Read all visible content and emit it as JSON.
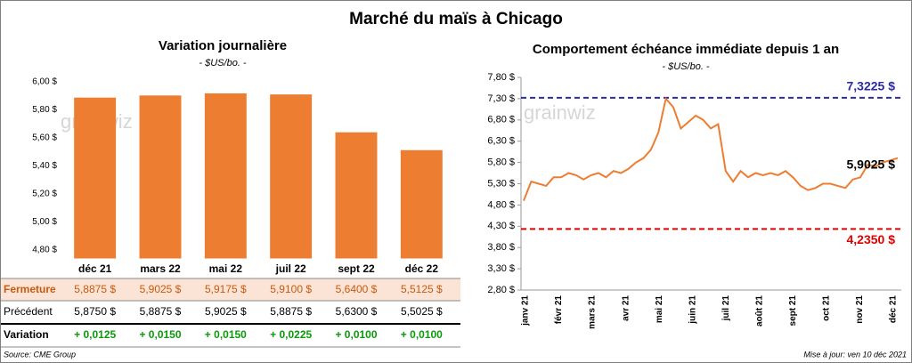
{
  "title": "Marché du maïs à Chicago",
  "watermark": "grainwiz",
  "source": "Source: CME Group",
  "updated": "Mise à jour: ven 10 déc 2021",
  "chart_data": [
    {
      "type": "bar",
      "title": "Variation journalière",
      "subtitle": "- $US/bo. -",
      "categories": [
        "déc 21",
        "mars 22",
        "mai 22",
        "juil 22",
        "sept 22",
        "déc 22"
      ],
      "values": [
        5.8875,
        5.9025,
        5.9175,
        5.91,
        5.64,
        5.5125
      ],
      "color": "#ed7d31",
      "ylim": [
        4.74,
        6.06
      ],
      "yticks": [
        {
          "value": 4.8,
          "label": "4,80 $"
        },
        {
          "value": 5.0,
          "label": "5,00 $"
        },
        {
          "value": 5.2,
          "label": "5,20 $"
        },
        {
          "value": 5.4,
          "label": "5,40 $"
        },
        {
          "value": 5.6,
          "label": "5,60 $"
        },
        {
          "value": 5.8,
          "label": "5,80 $"
        },
        {
          "value": 6.0,
          "label": "6,00 $"
        }
      ]
    },
    {
      "type": "line",
      "title": "Comportement  échéance immédiate depuis 1 an",
      "subtitle": "- $US/bo. -",
      "x_labels": [
        "janv 21",
        "févr 21",
        "mars 21",
        "avr 21",
        "mai 21",
        "juin 21",
        "juil 21",
        "août 21",
        "sept 21",
        "oct 21",
        "nov 21",
        "déc 21"
      ],
      "values": [
        4.9,
        5.35,
        5.3,
        5.25,
        5.45,
        5.45,
        5.55,
        5.5,
        5.4,
        5.5,
        5.55,
        5.45,
        5.6,
        5.55,
        5.65,
        5.8,
        5.9,
        6.1,
        6.5,
        7.3,
        7.1,
        6.6,
        6.75,
        6.9,
        6.8,
        6.6,
        6.7,
        5.6,
        5.35,
        5.6,
        5.45,
        5.55,
        5.5,
        5.55,
        5.5,
        5.6,
        5.45,
        5.25,
        5.15,
        5.2,
        5.3,
        5.3,
        5.25,
        5.2,
        5.4,
        5.45,
        5.75,
        5.7,
        5.8,
        5.85,
        5.9025
      ],
      "color": "#ed7d31",
      "end_label": "5,9025 $",
      "reference_lines": [
        {
          "value": 7.3225,
          "label": "7,3225 $",
          "color": "#2b2ba8"
        },
        {
          "value": 4.235,
          "label": "4,2350 $",
          "color": "#e00000"
        }
      ],
      "ylim": [
        2.8,
        7.8
      ],
      "yticks": [
        {
          "value": 2.8,
          "label": "2,80 $"
        },
        {
          "value": 3.3,
          "label": "3,30 $"
        },
        {
          "value": 3.8,
          "label": "3,80 $"
        },
        {
          "value": 4.3,
          "label": "4,30 $"
        },
        {
          "value": 4.8,
          "label": "4,80 $"
        },
        {
          "value": 5.3,
          "label": "5,30 $"
        },
        {
          "value": 5.8,
          "label": "5,80 $"
        },
        {
          "value": 6.3,
          "label": "6,30 $"
        },
        {
          "value": 6.8,
          "label": "6,80 $"
        },
        {
          "value": 7.3,
          "label": "7,30 $"
        },
        {
          "value": 7.8,
          "label": "7,80 $"
        }
      ]
    }
  ],
  "table": {
    "rows": [
      [
        "Fermeture",
        "5,8875 $",
        "5,9025 $",
        "5,9175 $",
        "5,9100 $",
        "5,6400 $",
        "5,5125 $"
      ],
      [
        "Précédent",
        "5,8750 $",
        "5,8875 $",
        "5,9025 $",
        "5,8875 $",
        "5,6300 $",
        "5,5025 $"
      ],
      [
        "Variation",
        "+ 0,0125",
        "+ 0,0150",
        "+ 0,0150",
        "+ 0,0225",
        "+ 0,0100",
        "+ 0,0100"
      ]
    ]
  }
}
